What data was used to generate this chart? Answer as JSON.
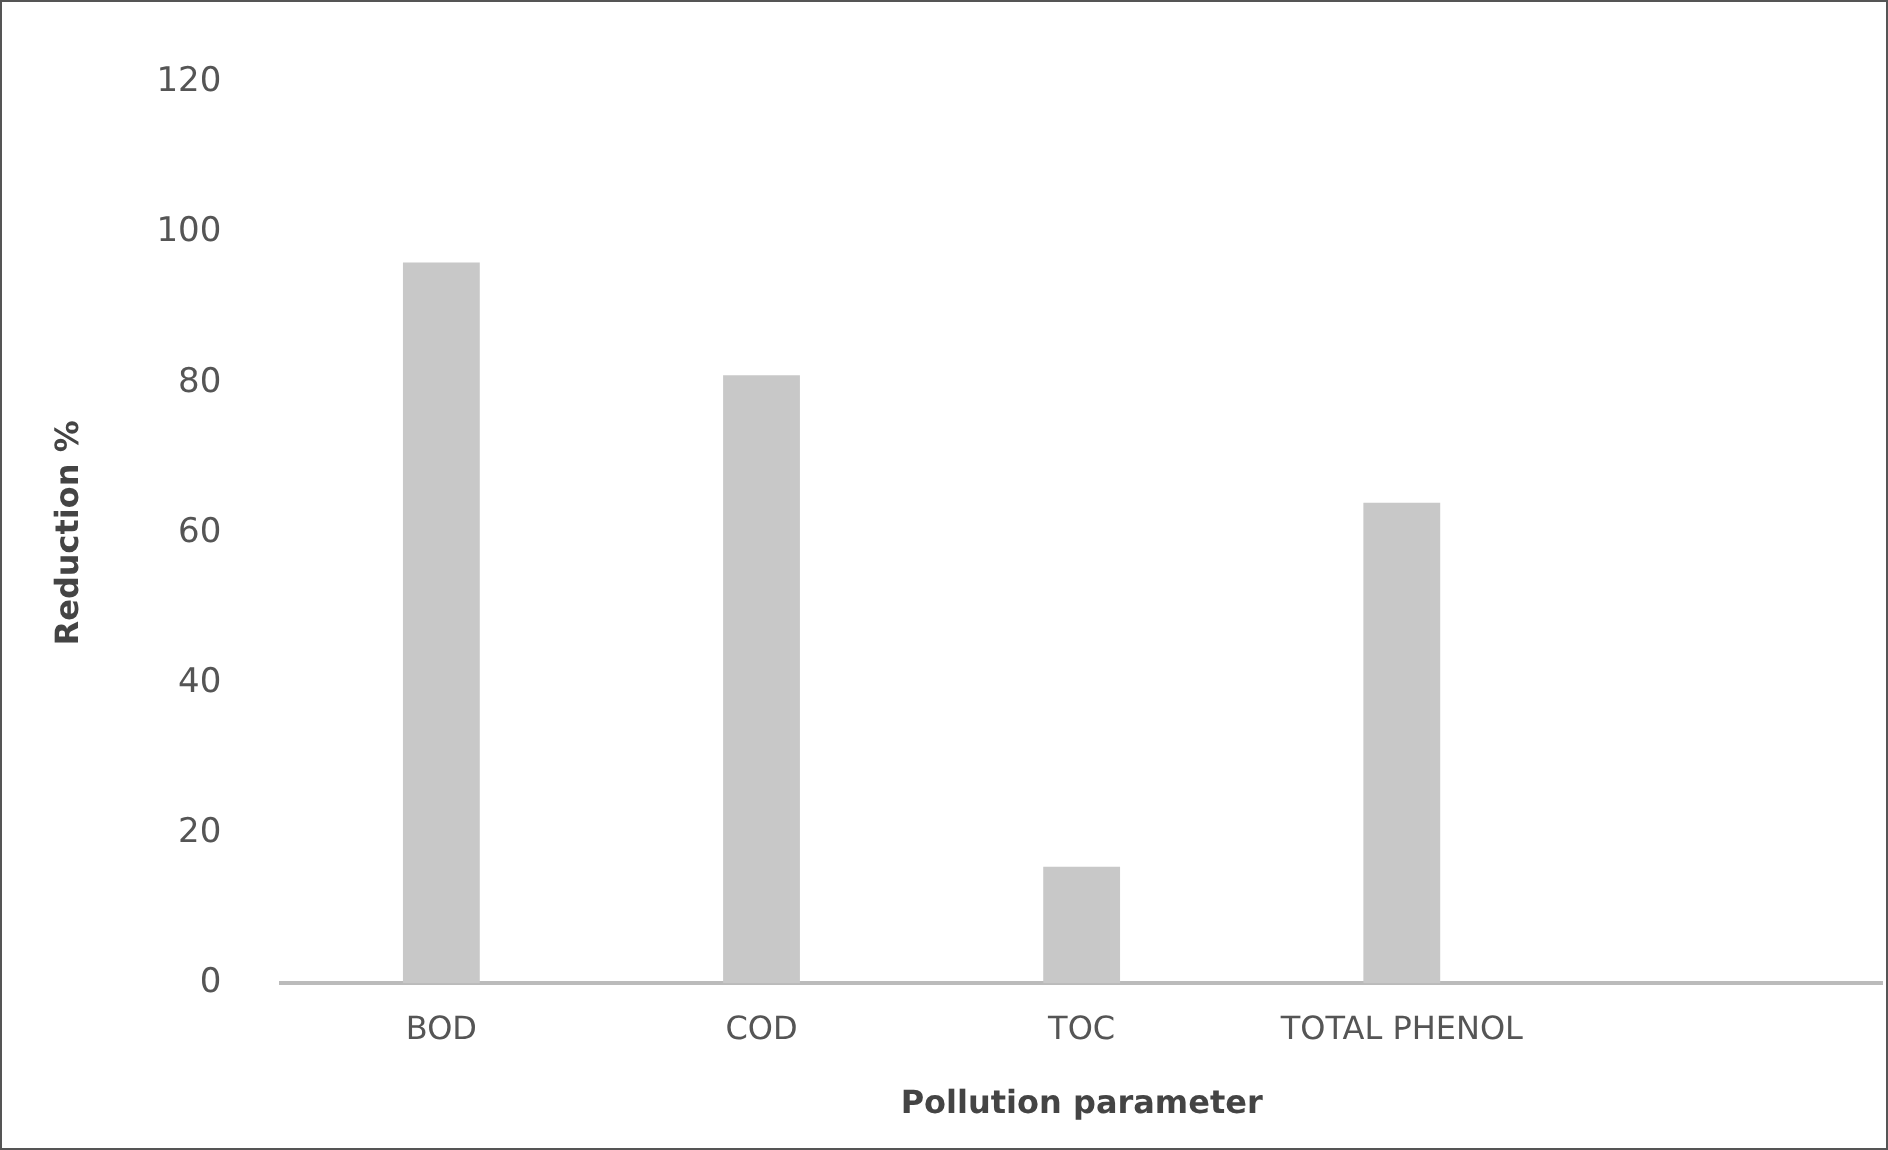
{
  "chart_data": {
    "type": "bar",
    "xlabel": "Pollution parameter",
    "ylabel": "Reduction %",
    "categories": [
      "BOD",
      "COD",
      "TOC",
      "TOTAL PHENOL",
      null
    ],
    "values": [
      96,
      81,
      15.5,
      64,
      null
    ],
    "color": "#c8c8c8",
    "ylim": [
      0,
      120
    ],
    "yticks": [
      0,
      20,
      40,
      60,
      80,
      100,
      120
    ],
    "grid": false,
    "legend": false
  }
}
